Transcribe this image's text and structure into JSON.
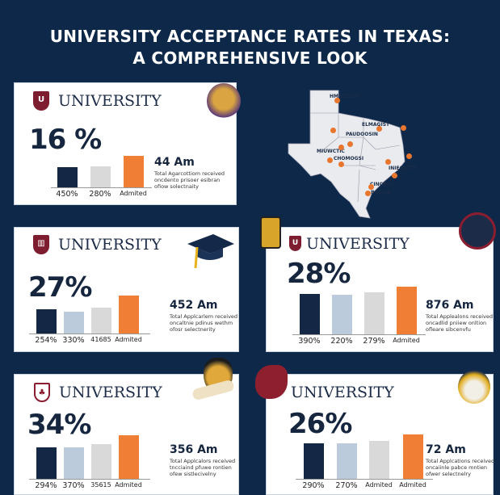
{
  "title": {
    "line1": "UNIVERSITY ACCEPTANCE RATES IN TEXAS:",
    "line2": "A COMPREHENSIVE LOOK"
  },
  "colors": {
    "background": "#0d2848",
    "accent": "#f07f35",
    "navy": "#142846"
  },
  "cards": [
    {
      "name": "UNIVERSITY",
      "rate": "16 %",
      "value": "44 Am",
      "desc": [
        "Total Agarcottiom received",
        "oncdento prisoer esibran",
        "ofiow solectnaity"
      ],
      "bar_labels": [
        "450%",
        "280%",
        "Admited"
      ]
    },
    {
      "name": "UNIVERSITY",
      "rate": "27%",
      "value": "452 Am",
      "desc": [
        "Total Applcarlem received",
        "oncaltnie pdinus wethm",
        "ofosr selectnerity"
      ],
      "bar_labels": [
        "254%",
        "330%",
        "41685",
        "Admited"
      ]
    },
    {
      "name": "UNIVERSITY",
      "rate": "28%",
      "value": "876 Am",
      "desc": [
        "Total Applealons received",
        "oncadlid pniiew onltion",
        "ofleare sibcenvfu"
      ],
      "bar_labels": [
        "390%",
        "220%",
        "279%",
        "Admited"
      ]
    },
    {
      "name": "UNIVERSITY",
      "rate": "34%",
      "value": "356 Am",
      "desc": [
        "Total Applcalors received",
        "tncciaind pfuwe rontien",
        "ofew sistlecivelny"
      ],
      "bar_labels": [
        "294%",
        "370%",
        "35615",
        "Admited"
      ]
    },
    {
      "name": "UNIVERSITY",
      "rate": "26%",
      "value": "72 Am",
      "desc": [
        "Total Applcations received",
        "oncaiinle pabce mntien",
        "ofwer selectnelry"
      ],
      "bar_labels": [
        "290%",
        "270%",
        "Admited",
        "Admited"
      ]
    }
  ],
  "map": {
    "labels": [
      "HMAGDSIG",
      "ELMAGIST",
      "PAUDOOSIN",
      "MIUWCTIC",
      "CHOMOGSI",
      "INIEGSTTY",
      "CINCRCI",
      "BOOGA"
    ]
  }
}
